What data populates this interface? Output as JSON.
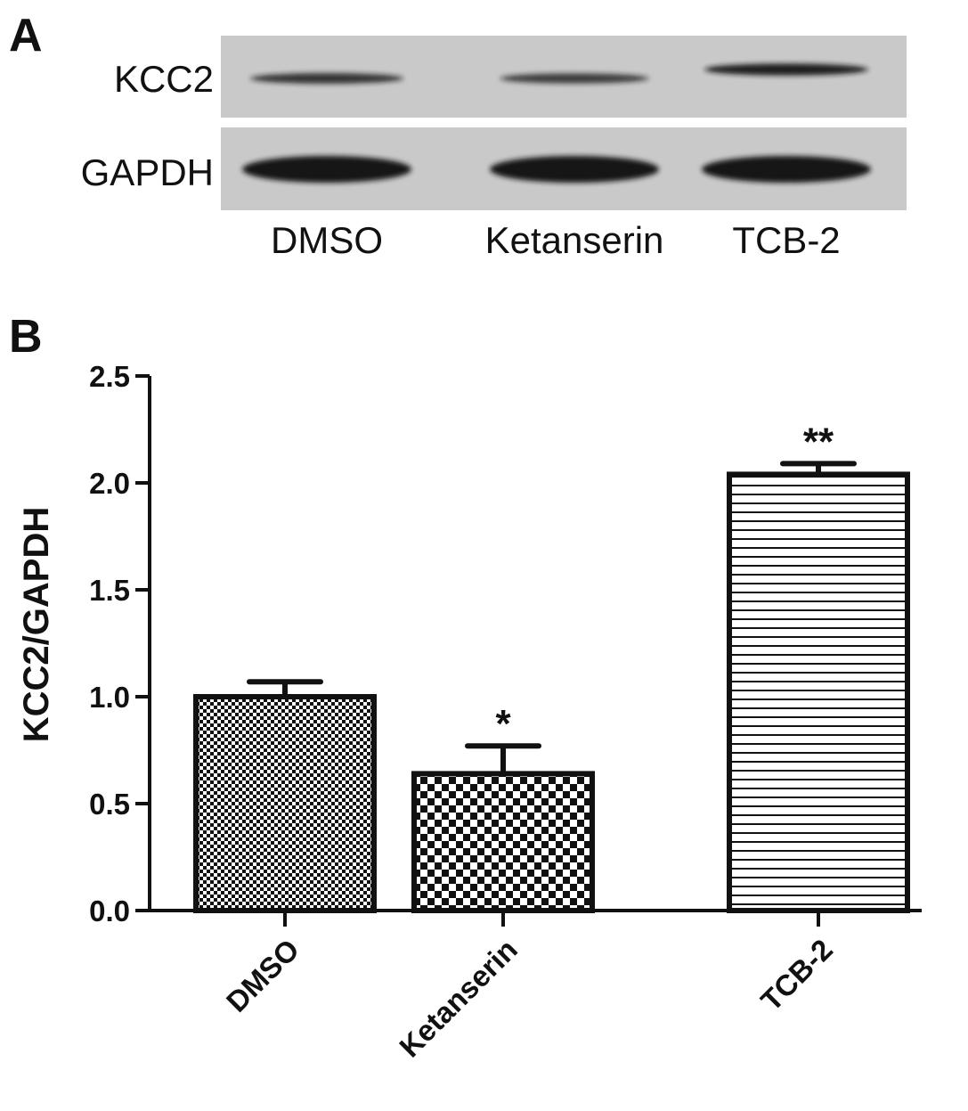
{
  "panels": {
    "a_label": "A",
    "b_label": "B"
  },
  "blot": {
    "rows": [
      {
        "label": "KCC2",
        "band_intensity": [
          0.62,
          0.52,
          0.88
        ]
      },
      {
        "label": "GAPDH",
        "band_intensity": [
          1.0,
          1.0,
          1.0
        ]
      }
    ],
    "lanes": [
      "DMSO",
      "Ketanserin",
      "TCB-2"
    ],
    "membrane_color": "#c9c9c9",
    "band_color": "#141414"
  },
  "chart_data": {
    "type": "bar",
    "categories": [
      "DMSO",
      "Ketanserin",
      "TCB-2"
    ],
    "series": [
      {
        "values": [
          1.0,
          0.64,
          2.04
        ],
        "error": [
          0.07,
          0.13,
          0.05
        ],
        "significance": [
          "",
          "*",
          "**"
        ],
        "patterns": [
          "fine-checker",
          "coarse-checker",
          "horizontal-lines"
        ]
      }
    ],
    "ylabel": "KCC2/GAPDH",
    "xlabel": "",
    "ylim": [
      0,
      2.5
    ],
    "yticks": [
      "0.0",
      "0.5",
      "1.0",
      "1.5",
      "2.0",
      "2.5"
    ],
    "grid": false,
    "colors": {
      "bar_fill": "#ffffff",
      "bar_stroke": "#111111"
    }
  }
}
